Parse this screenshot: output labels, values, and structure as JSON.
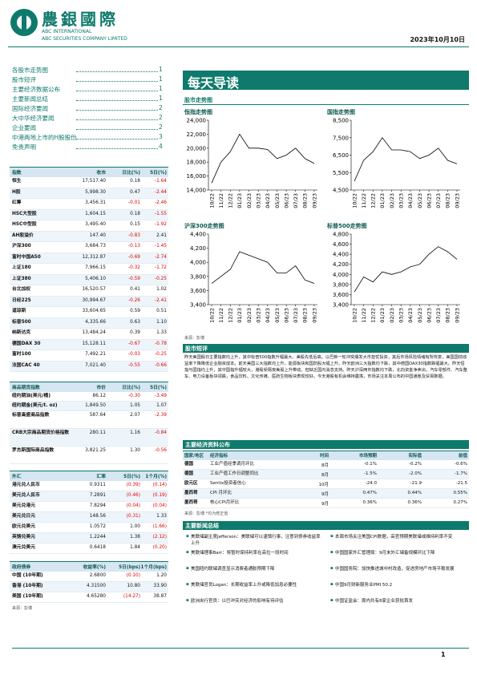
{
  "header": {
    "company_cn": "農銀國際",
    "company_en1": "ABC INTERNATIONAL",
    "company_en2": "ABC SECURITIES COMPANY LIMITED",
    "date": "2023年10月10日"
  },
  "toc": [
    {
      "title": "各股市走势图",
      "page": "1"
    },
    {
      "title": "股市短评",
      "page": "1"
    },
    {
      "title": "主要经济数据公布",
      "page": "1"
    },
    {
      "title": "主要新闻总结",
      "page": "1"
    },
    {
      "title": "国际经济要闻",
      "page": "2"
    },
    {
      "title": "大中华经济要闻",
      "page": "2"
    },
    {
      "title": "企业要闻",
      "page": "2"
    },
    {
      "title": "中港两地上市的H股股份",
      "page": "3"
    },
    {
      "title": "免责声明",
      "page": "4"
    }
  ],
  "banner": "每天导读",
  "sections": {
    "market_charts": "股市走势图",
    "commentary": "股市短评",
    "economic": "主要经济资料公布",
    "news": "主要新闻总结"
  },
  "charts": [
    {
      "title": "恒指走势图",
      "categories": [
        "10/22",
        "11/22",
        "12/22",
        "01/23",
        "02/23",
        "03/23",
        "04/23",
        "05/23",
        "06/23",
        "07/23",
        "08/23",
        "09/23"
      ],
      "values": [
        15000,
        18000,
        19500,
        22000,
        20000,
        20000,
        19800,
        18500,
        19000,
        20000,
        18500,
        17800
      ],
      "ylim": [
        14000,
        24000
      ],
      "yticks": [
        {
          "value": 14000,
          "label": "14,000"
        },
        {
          "value": 16000,
          "label": "16,000"
        },
        {
          "value": 18000,
          "label": "18,000"
        },
        {
          "value": 20000,
          "label": "20,000"
        },
        {
          "value": 22000,
          "label": "22,000"
        },
        {
          "value": 24000,
          "label": "24,000"
        }
      ]
    },
    {
      "title": "国指走势图",
      "categories": [
        "10/22",
        "11/22",
        "12/22",
        "01/23",
        "02/23",
        "03/23",
        "04/23",
        "05/23",
        "06/23",
        "07/23",
        "08/23",
        "09/23"
      ],
      "values": [
        5000,
        6200,
        6700,
        7500,
        6800,
        6800,
        6700,
        6300,
        6500,
        6900,
        6200,
        6000
      ],
      "ylim": [
        4500,
        8500
      ],
      "yticks": [
        {
          "value": 4500,
          "label": "4,500"
        },
        {
          "value": 5500,
          "label": "5,500"
        },
        {
          "value": 6500,
          "label": "6,500"
        },
        {
          "value": 7500,
          "label": "7,500"
        },
        {
          "value": 8500,
          "label": "8,500"
        }
      ]
    },
    {
      "title": "沪深300走势图",
      "categories": [
        "10/22",
        "11/22",
        "12/22",
        "01/23",
        "02/23",
        "03/23",
        "04/23",
        "05/23",
        "06/23",
        "07/23",
        "08/23",
        "09/23"
      ],
      "values": [
        3700,
        3800,
        3900,
        4150,
        4100,
        4050,
        4000,
        3850,
        3850,
        3950,
        3750,
        3700
      ],
      "ylim": [
        3400,
        4400
      ],
      "yticks": [
        {
          "value": 3400,
          "label": "3,400"
        },
        {
          "value": 3600,
          "label": "3,600"
        },
        {
          "value": 3800,
          "label": "3,800"
        },
        {
          "value": 4000,
          "label": "4,000"
        },
        {
          "value": 4200,
          "label": "4,200"
        },
        {
          "value": 4400,
          "label": "4,400"
        }
      ]
    },
    {
      "title": "标普500走势图",
      "categories": [
        "10/22",
        "11/22",
        "12/22",
        "01/23",
        "02/23",
        "03/23",
        "04/23",
        "05/23",
        "06/23",
        "07/23",
        "08/23",
        "09/23"
      ],
      "values": [
        3650,
        3950,
        3850,
        4050,
        4000,
        4050,
        4150,
        4200,
        4400,
        4550,
        4450,
        4300
      ],
      "ylim": [
        3400,
        4800
      ],
      "yticks": [
        {
          "value": 3400,
          "label": "3,400"
        },
        {
          "value": 3600,
          "label": "3,600"
        },
        {
          "value": 3800,
          "label": "3,800"
        },
        {
          "value": 4000,
          "label": "4,000"
        },
        {
          "value": 4200,
          "label": "4,200"
        },
        {
          "value": 4400,
          "label": "4,400"
        },
        {
          "value": 4600,
          "label": "4,600"
        },
        {
          "value": 4800,
          "label": "4,800"
        }
      ]
    }
  ],
  "source_charts": "来源：彭博",
  "commentary_text": "昨天美国假日主要指数均上升，其中标普500指数升幅最大，美股先低后高。以巴新一轮冲突爆发大市担忧投资，其后市场风险情绪有所恢复，美国国债收益率下降降低企业融资成本。前天美国三大指数均上升，能源板块和国防股大幅上升。昨天欧洲三大指数均下跌，其中德国DAX30指数跌幅最大。昨天恒指与国指均上升，其中国指升幅较大，港股受隔夜美股上升带动，但缺乏国内消息支持。昨天沪深两市指数均下跌，北向资金净卖出，汽车零部件、汽车整车、电力设备板块领跌，食品饮料、文化传媒、医药生物板块表现较好。今天港股有机会维持震荡，市场关注本周公布的中国通胀及贸易数据。",
  "index_table": {
    "columns": [
      "指数",
      "收市",
      "日比(%)",
      "5日(%)"
    ],
    "rows": [
      [
        "恒生",
        "17,517.40",
        "0.18",
        "-1.64"
      ],
      [
        "H股",
        "5,998.30",
        "0.47",
        "-2.44"
      ],
      [
        "红筹",
        "3,456.31",
        "-0.01",
        "-2.46"
      ],
      [
        "HSC大型股",
        "1,604.15",
        "0.18",
        "-1.55"
      ],
      [
        "HSC中型股",
        "3,495.40",
        "0.15",
        "-1.92"
      ],
      [
        "AH股溢价",
        "147.40",
        "-0.83",
        "2.41"
      ],
      [
        "沪深300",
        "3,684.73",
        "-0.13",
        "-1.45"
      ],
      [
        "富时中国A50",
        "12,312.87",
        "-0.69",
        "-2.74"
      ],
      [
        "上证180",
        "7,966.15",
        "-0.32",
        "-1.72"
      ],
      [
        "上证380",
        "5,406.10",
        "-0.59",
        "-0.25"
      ],
      [
        "台北加权",
        "16,520.57",
        "0.41",
        "1.02"
      ],
      [
        "日经225",
        "30,994.67",
        "-0.26",
        "-2.41"
      ],
      [
        "道琼斯",
        "33,604.65",
        "0.59",
        "0.51"
      ],
      [
        "标普500",
        "4,335.66",
        "0.63",
        "1.10"
      ],
      [
        "纳斯达克",
        "13,484.24",
        "0.39",
        "1.33"
      ],
      [
        "德国DAX 30",
        "15,128.11",
        "-0.67",
        "-0.78"
      ],
      [
        "富时100",
        "7,492.21",
        "-0.03",
        "-0.25"
      ],
      [
        "法国CAC 40",
        "7,021.40",
        "-0.55",
        "-0.66"
      ]
    ]
  },
  "commodity_table": {
    "columns": [
      "商品期货指数",
      "市价",
      "日比(%)",
      "5日(%)"
    ],
    "rows": [
      [
        "纽约期油(美元/桶)",
        "86.12",
        "-0.30",
        "-3.49"
      ],
      [
        "纽约期金(美元/t. oz)",
        "1,849.50",
        "1.05",
        "1.07"
      ],
      [
        "标普高盛商品指数",
        "587.64",
        "2.07",
        "-2.39"
      ],
      [
        "CRB大宗商品期货价格指数",
        "280.11",
        "1.16",
        "-0.84"
      ],
      [
        "罗杰斯国际商品指数",
        "3,821.25",
        "1.30",
        "-0.56"
      ]
    ]
  },
  "fx_table": {
    "columns": [
      "外汇",
      "汇率",
      "5日(%)",
      "1个月(%)"
    ],
    "rows": [
      [
        "港元兑人民币",
        "0.9311",
        "(0.39)",
        "(0.14)"
      ],
      [
        "美元兑人民币",
        "7.2891",
        "(0.46)",
        "(0.19)"
      ],
      [
        "美元兑港元",
        "7.8294",
        "(0.04)",
        "(0.04)"
      ],
      [
        "美元兑日元",
        "148.56",
        "(0.31)",
        "1.33"
      ],
      [
        "欧元兑美元",
        "1.0572",
        "1.00",
        "(1.66)"
      ],
      [
        "英镑兑美元",
        "1.2244",
        "1.38",
        "(2.12)"
      ],
      [
        "澳元兑美元",
        "0.6418",
        "1.84",
        "(0.20)"
      ]
    ]
  },
  "bond_table": {
    "columns": [
      "政府债券",
      "收益率(%)",
      "5日(bps)",
      "1个月(bps)"
    ],
    "rows": [
      [
        "中国 (10年期)",
        "2.6800",
        "(0.10)",
        "1.20"
      ],
      [
        "香港 (10年期)",
        "4.31500",
        "10.80",
        "33.90"
      ],
      [
        "美国 (10年期)",
        "4.65280",
        "(14.27)",
        "38.87"
      ]
    ]
  },
  "source_tables": "来源：彭博",
  "economic_table": {
    "columns": [
      "国家/地区",
      "经济指标",
      "时间",
      "市场预期",
      "实际值",
      "前值"
    ],
    "rows": [
      [
        "德国",
        "工业产值经季调月环比",
        "8月",
        "-0.1%",
        "-0.2%",
        "-0.6%"
      ],
      [
        "德国",
        "工业产值工作日调整同比",
        "8月",
        "-1.5%",
        "-2.0%",
        "-1.7%"
      ],
      [
        "欧元区",
        "Sentix投资者信心",
        "10月",
        "-24.0",
        "-21.9",
        "-21.5"
      ],
      [
        "墨西哥",
        "CPI 月环比",
        "9月",
        "0.47%",
        "0.44%",
        "0.55%"
      ],
      [
        "墨西哥",
        "核心CPI月环比",
        "9月",
        "0.36%",
        "0.36%",
        "0.27%"
      ]
    ]
  },
  "economic_source": "来源：彭博 *均为修正值",
  "news": {
    "left": [
      "美联储副主席Jefferson：美联储可以谨慎行事，注意到债券收益率上升",
      "美联储理事Barr：将暂时保持利率在高位一段时间",
      "美国纽约联储调查显示消费者通胀预期下降",
      "美联储官员Logan：长期收益率上升或降低加息必要性",
      "欧洲央行官员：以巴冲突对经济的影响有待评估"
    ],
    "right": [
      "本周市场关注美国CPI数据，高官预期美联储或维持利率不变",
      "中国国家外汇管理局：9月末外汇储备规模环比下降",
      "中国国务院：加快推进城中村改造，促进房地产市场平稳发展",
      "中国9月财新服务业PMI 50.2",
      "中国证监会：周内共有8家企业获批首发"
    ]
  },
  "page_number": "1"
}
